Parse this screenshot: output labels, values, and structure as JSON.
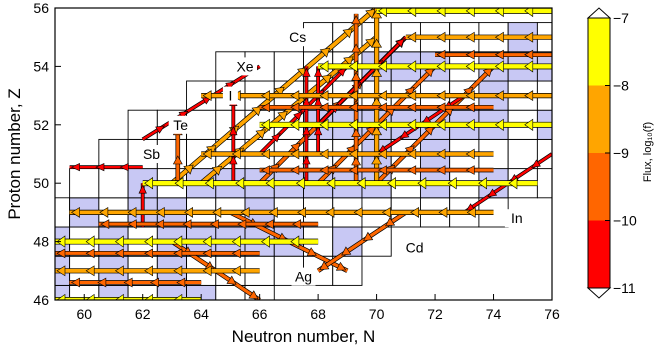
{
  "chart_data": {
    "type": "nuclide-flux-chart",
    "xlabel": "Neutron number, N",
    "ylabel": "Proton number, Z",
    "xlim": [
      59,
      76
    ],
    "ylim": [
      46,
      56
    ],
    "xticks": [
      60,
      62,
      64,
      66,
      68,
      70,
      72,
      74,
      76
    ],
    "yticks": [
      46,
      48,
      50,
      52,
      54,
      56
    ],
    "element_labels": [
      {
        "name": "Cs",
        "n": 67.3,
        "z": 55.0
      },
      {
        "name": "Xe",
        "n": 65.5,
        "z": 54.0
      },
      {
        "name": "I",
        "n": 65.0,
        "z": 53.0
      },
      {
        "name": "Te",
        "n": 63.3,
        "z": 52.0
      },
      {
        "name": "Sb",
        "n": 62.3,
        "z": 51.0
      },
      {
        "name": "In",
        "n": 74.8,
        "z": 48.8
      },
      {
        "name": "Cd",
        "n": 71.3,
        "z": 47.8
      },
      {
        "name": "Ag",
        "n": 67.5,
        "z": 46.8
      }
    ],
    "colorbar": {
      "label": "Flux, log₁₀(f)",
      "ticks": [
        -7,
        -8,
        -9,
        -10,
        -11
      ],
      "bands": [
        {
          "from": -11,
          "to": -10,
          "color": "#ff0000"
        },
        {
          "from": -10,
          "to": -9,
          "color": "#ff6600"
        },
        {
          "from": -9,
          "to": -8,
          "color": "#ffa500"
        },
        {
          "from": -8,
          "to": -7,
          "color": "#ffff00"
        }
      ]
    },
    "nuclide_rows": [
      {
        "z": 46,
        "n_from": 59,
        "n_to": 66
      },
      {
        "z": 47,
        "n_from": 59,
        "n_to": 69
      },
      {
        "z": 48,
        "n_from": 59,
        "n_to": 70
      },
      {
        "z": 49,
        "n_from": 59,
        "n_to": 74
      },
      {
        "z": 50,
        "n_from": 60,
        "n_to": 76
      },
      {
        "z": 51,
        "n_from": 61,
        "n_to": 76
      },
      {
        "z": 52,
        "n_from": 62,
        "n_to": 76
      },
      {
        "z": 53,
        "n_from": 64,
        "n_to": 76
      },
      {
        "z": 54,
        "n_from": 65,
        "n_to": 76
      },
      {
        "z": 55,
        "n_from": 68,
        "n_to": 76
      }
    ],
    "stable_nuclides": [
      [
        46,
        59
      ],
      [
        46,
        61
      ],
      [
        46,
        63
      ],
      [
        46,
        64
      ],
      [
        47,
        59
      ],
      [
        47,
        61
      ],
      [
        47,
        63
      ],
      [
        48,
        59
      ],
      [
        48,
        61
      ],
      [
        48,
        63
      ],
      [
        48,
        64
      ],
      [
        48,
        65
      ],
      [
        48,
        66
      ],
      [
        48,
        67
      ],
      [
        48,
        69
      ],
      [
        49,
        60
      ],
      [
        49,
        62
      ],
      [
        49,
        63
      ],
      [
        49,
        66
      ],
      [
        50,
        62
      ],
      [
        50,
        64
      ],
      [
        50,
        65
      ],
      [
        50,
        66
      ],
      [
        50,
        67
      ],
      [
        50,
        68
      ],
      [
        50,
        69
      ],
      [
        50,
        70
      ],
      [
        50,
        72
      ],
      [
        50,
        74
      ],
      [
        51,
        70
      ],
      [
        51,
        72
      ],
      [
        52,
        68
      ],
      [
        52,
        69
      ],
      [
        52,
        70
      ],
      [
        52,
        71
      ],
      [
        52,
        72
      ],
      [
        52,
        73
      ],
      [
        52,
        74
      ],
      [
        52,
        76
      ],
      [
        53,
        74
      ],
      [
        54,
        70
      ],
      [
        54,
        71
      ],
      [
        54,
        72
      ],
      [
        54,
        74
      ],
      [
        54,
        75
      ],
      [
        54,
        76
      ],
      [
        55,
        75
      ]
    ],
    "flux_rows": [
      {
        "z": 55.9,
        "n_from": 76.0,
        "n_to": 70.0,
        "log_flux": -7.5
      },
      {
        "z": 55.0,
        "n_from": 76.0,
        "n_to": 71.0,
        "log_flux": -8.5
      },
      {
        "z": 54.4,
        "n_from": 76.0,
        "n_to": 72.0,
        "log_flux": -9.5
      },
      {
        "z": 54.0,
        "n_from": 76.0,
        "n_to": 68.0,
        "log_flux": -7.5
      },
      {
        "z": 53.0,
        "n_from": 76.0,
        "n_to": 64.0,
        "log_flux": -8.5
      },
      {
        "z": 52.6,
        "n_from": 74.0,
        "n_to": 66.0,
        "log_flux": -9.5
      },
      {
        "z": 52.0,
        "n_from": 76.0,
        "n_to": 66.0,
        "log_flux": -7.5
      },
      {
        "z": 51.0,
        "n_from": 74.0,
        "n_to": 64.0,
        "log_flux": -8.5
      },
      {
        "z": 50.45,
        "n_from": 74.0,
        "n_to": 66.0,
        "log_flux": -9.5
      },
      {
        "z": 50.0,
        "n_from": 75.5,
        "n_to": 62.0,
        "log_flux": -7.5
      },
      {
        "z": 49.0,
        "n_from": 74.0,
        "n_to": 59.5,
        "log_flux": -8.5
      },
      {
        "z": 48.6,
        "n_from": 68.0,
        "n_to": 60.5,
        "log_flux": -9.5
      },
      {
        "z": 48.0,
        "n_from": 68.0,
        "n_to": 59.0,
        "log_flux": -7.5
      },
      {
        "z": 47.6,
        "n_from": 66.0,
        "n_to": 59.0,
        "log_flux": -9.5
      },
      {
        "z": 47.0,
        "n_from": 66.0,
        "n_to": 59.0,
        "log_flux": -8.5
      },
      {
        "z": 46.6,
        "n_from": 64.0,
        "n_to": 59.5,
        "log_flux": -9.5
      },
      {
        "z": 46.0,
        "n_from": 64.0,
        "n_to": 59.0,
        "log_flux": -7.5
      },
      {
        "z": 50.55,
        "n_from": 62.0,
        "n_to": 59.5,
        "log_flux": -10.5
      }
    ],
    "flux_diagonals": [
      {
        "n1": 63.0,
        "z1": 50.0,
        "n2": 70.0,
        "z2": 56.0,
        "log_flux": -8.5
      },
      {
        "n1": 64.0,
        "z1": 50.0,
        "n2": 70.0,
        "z2": 55.0,
        "log_flux": -8.5
      },
      {
        "n1": 66.0,
        "z1": 50.0,
        "n2": 71.0,
        "z2": 55.0,
        "log_flux": -9.5
      },
      {
        "n1": 68.0,
        "z1": 50.0,
        "n2": 72.0,
        "z2": 54.0,
        "log_flux": -9.5
      },
      {
        "n1": 62.0,
        "z1": 51.5,
        "n2": 66.0,
        "z2": 54.0,
        "log_flux": -10.5
      },
      {
        "n1": 70.0,
        "z1": 50.0,
        "n2": 74.0,
        "z2": 54.0,
        "log_flux": -9.5
      },
      {
        "n1": 66.0,
        "z1": 51.0,
        "n2": 69.0,
        "z2": 54.0,
        "log_flux": -10.5
      },
      {
        "n1": 68.0,
        "z1": 52.0,
        "n2": 71.0,
        "z2": 55.0,
        "log_flux": -10.5
      },
      {
        "n1": 63.0,
        "z1": 48.0,
        "n2": 66.0,
        "z2": 46.0,
        "log_flux": -9.5
      },
      {
        "n1": 65.0,
        "z1": 49.0,
        "n2": 69.0,
        "z2": 47.0,
        "log_flux": -9.5
      },
      {
        "n1": 71.0,
        "z1": 49.0,
        "n2": 68.0,
        "z2": 47.0,
        "log_flux": -9.5
      },
      {
        "n1": 76.0,
        "z1": 51.0,
        "n2": 73.0,
        "z2": 49.0,
        "log_flux": -10.5
      },
      {
        "n1": 73.0,
        "z1": 53.0,
        "n2": 70.0,
        "z2": 51.0,
        "log_flux": -10.5
      }
    ],
    "flux_verticals": [
      {
        "n": 63.2,
        "z1": 50.0,
        "z2": 52.0,
        "log_flux": -9.5
      },
      {
        "n": 65.1,
        "z1": 50.0,
        "z2": 53.0,
        "log_flux": -10.5
      },
      {
        "n": 67.6,
        "z1": 50.0,
        "z2": 54.0,
        "log_flux": -10.5
      },
      {
        "n": 69.3,
        "z1": 50.0,
        "z2": 55.8,
        "log_flux": -9.5
      },
      {
        "n": 70.0,
        "z1": 50.0,
        "z2": 56.0,
        "log_flux": -8.5
      },
      {
        "n": 68.0,
        "z1": 51.0,
        "z2": 54.0,
        "log_flux": -10.5
      },
      {
        "n": 62.0,
        "z1": 48.5,
        "z2": 50.0,
        "log_flux": -10.5
      }
    ]
  }
}
